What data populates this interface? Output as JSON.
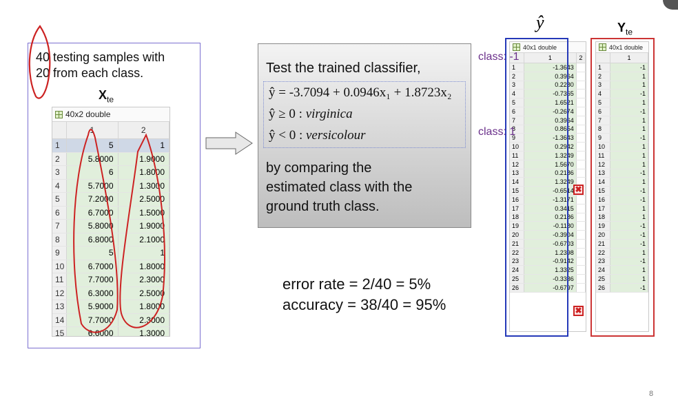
{
  "left": {
    "note_line1": "40 testing samples with",
    "note_line2": "20 from each class.",
    "matrix_label": "X",
    "matrix_label_sub": "te",
    "matrix_title": "40x2 double",
    "columns": [
      "1",
      "2"
    ],
    "rows": [
      [
        "1",
        "5",
        "1"
      ],
      [
        "2",
        "5.8000",
        "1.9000"
      ],
      [
        "3",
        "6",
        "1.8000"
      ],
      [
        "4",
        "5.7000",
        "1.3000"
      ],
      [
        "5",
        "7.2000",
        "2.5000"
      ],
      [
        "6",
        "6.7000",
        "1.5000"
      ],
      [
        "7",
        "5.8000",
        "1.9000"
      ],
      [
        "8",
        "6.8000",
        "2.1000"
      ],
      [
        "9",
        "5",
        "1"
      ],
      [
        "10",
        "6.7000",
        "1.8000"
      ],
      [
        "11",
        "7.7000",
        "2.3000"
      ],
      [
        "12",
        "6.3000",
        "2.5000"
      ],
      [
        "13",
        "5.9000",
        "1.8000"
      ],
      [
        "14",
        "7.7000",
        "2.3000"
      ],
      [
        "15",
        "6.6000",
        "1.3000"
      ]
    ]
  },
  "center": {
    "title": "Test the trained classifier,",
    "eq1": "ŷ = -3.7094 + 0.0946x₁ + 1.8723x₂",
    "eq2_lhs": "ŷ ≥ 0 : ",
    "eq2_rhs": "virginica",
    "eq3_lhs": "ŷ < 0 : ",
    "eq3_rhs": "versicolour",
    "body_line1": "by comparing the",
    "body_line2": "estimated class with the",
    "body_line3": "ground truth class.",
    "error_rate": "error rate = 2/40  = 5%",
    "accuracy": "accuracy = 38/40 = 95%"
  },
  "right": {
    "yhat_label": "ŷ",
    "yte_label": "Y",
    "yte_label_sub": "te",
    "yhat_title": "40x1 double",
    "yte_title": "40x1 double",
    "yhat_columns": [
      "1",
      "2"
    ],
    "yte_columns": [
      "1"
    ],
    "class_neg": "class: -1",
    "class_pos": "class: 1",
    "yhat_rows": [
      [
        "1",
        "-1.3643"
      ],
      [
        "2",
        "0.3964"
      ],
      [
        "3",
        "0.2280"
      ],
      [
        "4",
        "-0.7365"
      ],
      [
        "5",
        "1.6521"
      ],
      [
        "6",
        "-0.2674"
      ],
      [
        "7",
        "0.3964"
      ],
      [
        "8",
        "0.8654"
      ],
      [
        "9",
        "-1.3643"
      ],
      [
        "10",
        "0.2942"
      ],
      [
        "11",
        "1.3249"
      ],
      [
        "12",
        "1.5670"
      ],
      [
        "13",
        "0.2186"
      ],
      [
        "14",
        "1.3249"
      ],
      [
        "15",
        "-0.6514"
      ],
      [
        "16",
        "-1.3171"
      ],
      [
        "17",
        "0.3415"
      ],
      [
        "18",
        "0.2186"
      ],
      [
        "19",
        "-0.1180"
      ],
      [
        "20",
        "-0.3904"
      ],
      [
        "21",
        "-0.6703"
      ],
      [
        "22",
        "1.2398"
      ],
      [
        "23",
        "-0.9142"
      ],
      [
        "24",
        "1.3325"
      ],
      [
        "25",
        "-0.3336"
      ],
      [
        "26",
        "-0.6797"
      ]
    ],
    "yte_rows": [
      [
        "1",
        "-1"
      ],
      [
        "2",
        "1"
      ],
      [
        "3",
        "1"
      ],
      [
        "4",
        "-1"
      ],
      [
        "5",
        "1"
      ],
      [
        "6",
        "-1"
      ],
      [
        "7",
        "1"
      ],
      [
        "8",
        "1"
      ],
      [
        "9",
        "-1"
      ],
      [
        "10",
        "1"
      ],
      [
        "11",
        "1"
      ],
      [
        "12",
        "1"
      ],
      [
        "13",
        "-1"
      ],
      [
        "14",
        "1"
      ],
      [
        "15",
        "-1"
      ],
      [
        "16",
        "-1"
      ],
      [
        "17",
        "1"
      ],
      [
        "18",
        "1"
      ],
      [
        "19",
        "-1"
      ],
      [
        "20",
        "-1"
      ],
      [
        "21",
        "-1"
      ],
      [
        "22",
        "1"
      ],
      [
        "23",
        "-1"
      ],
      [
        "24",
        "1"
      ],
      [
        "25",
        "1"
      ],
      [
        "26",
        "-1"
      ]
    ],
    "error_mark": "✖"
  },
  "page_number": "8",
  "colors": {
    "blue_frame": "#2438b8",
    "red_frame": "#cc3333",
    "annotation": "#6a2f8a",
    "cell_green": "#e1efdc"
  }
}
